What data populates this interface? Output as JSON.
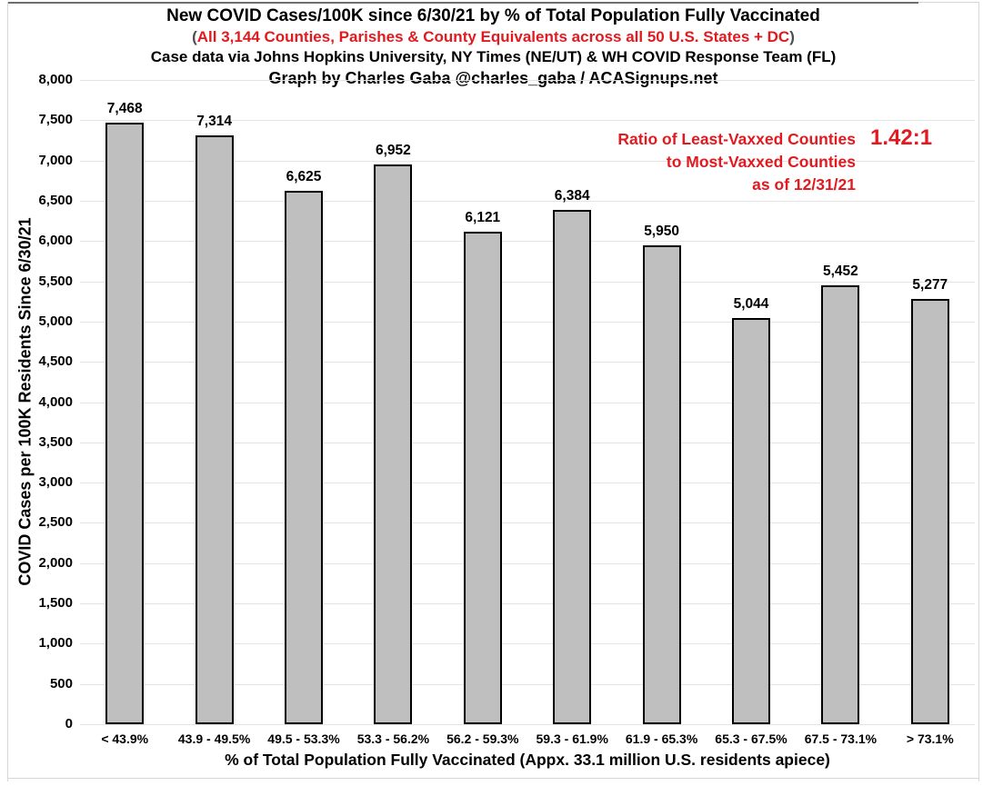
{
  "title": {
    "line1": "New COVID Cases/100K since 6/30/21 by % of Total Population Fully Vaccinated",
    "line2_open": "(",
    "line2_text": "All 3,144 Counties, Parishes & County Equivalents across all 50 U.S. States + DC",
    "line2_close": ")",
    "line3": "Case data via Johns Hopkins University, NY Times (NE/UT) & WH COVID Response Team (FL)",
    "line4": "Graph by Charles Gaba @charles_gaba / ACASignups.net"
  },
  "annotation": {
    "line1": "Ratio of Least-Vaxxed Counties",
    "line2": "to Most-Vaxxed Counties",
    "line3": "as of 12/31/21",
    "ratio_value": "1.42:1"
  },
  "colors": {
    "accent_red": "#e11a20",
    "bar_fill": "#bfbfbf",
    "bar_border": "#000000",
    "gridline": "#e3e3e3",
    "frame_light": "#d6d6d6",
    "frame_dark": "#6e6e6e",
    "text": "#000000"
  },
  "chart_data": {
    "type": "bar",
    "title": "New COVID Cases/100K since 6/30/21 by % of Total Population Fully Vaccinated",
    "subtitle": "(All 3,144 Counties, Parishes & County Equivalents across all 50 U.S. States + DC)",
    "categories": [
      "< 43.9%",
      "43.9 - 49.5%",
      "49.5 - 53.3%",
      "53.3 - 56.2%",
      "56.2 - 59.3%",
      "59.3 - 61.9%",
      "61.9 - 65.3%",
      "65.3 - 67.5%",
      "67.5 - 73.1%",
      "> 73.1%"
    ],
    "values": [
      7468,
      7314,
      6625,
      6952,
      6121,
      6384,
      5950,
      5044,
      5452,
      5277
    ],
    "value_labels": [
      "7,468",
      "7,314",
      "6,625",
      "6,952",
      "6,121",
      "6,384",
      "5,950",
      "5,044",
      "5,452",
      "5,277"
    ],
    "xlabel": "% of Total Population Fully Vaccinated (Appx. 33.1 million U.S. residents apiece)",
    "ylabel": "COVID Cases per 100K Residents Since 6/30/21",
    "ylim": [
      0,
      8000
    ],
    "ytick_step": 500,
    "ytick_labels": [
      "0",
      "500",
      "1,000",
      "1,500",
      "2,000",
      "2,500",
      "3,000",
      "3,500",
      "4,000",
      "4,500",
      "5,000",
      "5,500",
      "6,000",
      "6,500",
      "7,000",
      "7,500",
      "8,000"
    ],
    "grid": true,
    "legend": "none",
    "annotation_text": "Ratio of Least-Vaxxed Counties to Most-Vaxxed Counties as of 12/31/21",
    "annotation_value": "1.42:1"
  }
}
